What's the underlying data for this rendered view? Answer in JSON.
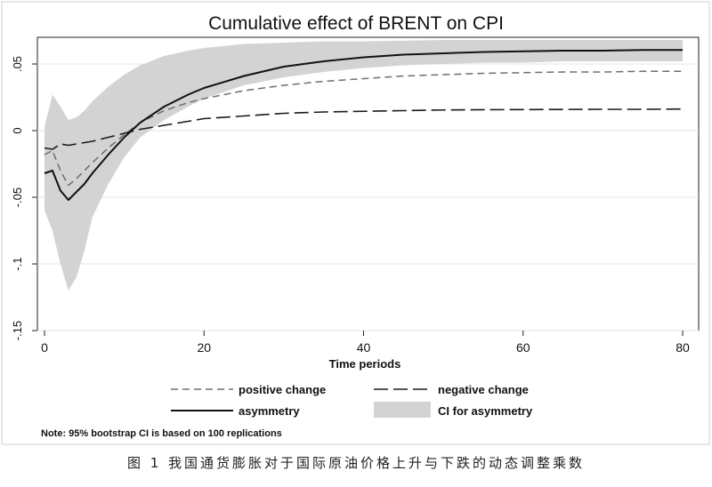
{
  "chart_data": {
    "type": "line",
    "title": "Cumulative effect of BRENT on CPI",
    "xlabel": "Time periods",
    "ylabel": "",
    "xlim": [
      0,
      80
    ],
    "ylim": [
      -0.15,
      0.07
    ],
    "x_ticks": [
      0,
      20,
      40,
      60,
      80
    ],
    "x_tick_labels": [
      "0",
      "20",
      "40",
      "60",
      "80"
    ],
    "y_ticks": [
      0.05,
      0,
      -0.05,
      -0.1,
      -0.15
    ],
    "y_tick_labels": [
      ".05",
      "0",
      "-.05",
      "-.1",
      "-.15"
    ],
    "grid": true,
    "legend_position": "bottom",
    "x": [
      0,
      1,
      2,
      3,
      4,
      5,
      6,
      8,
      10,
      12,
      15,
      18,
      20,
      25,
      30,
      35,
      40,
      45,
      50,
      55,
      60,
      65,
      70,
      75,
      80
    ],
    "series": [
      {
        "name": "positive change",
        "style": "short-dash",
        "color": "#6e6e6e",
        "values": [
          -0.018,
          -0.015,
          -0.03,
          -0.041,
          -0.036,
          -0.03,
          -0.024,
          -0.013,
          -0.003,
          0.006,
          0.015,
          0.021,
          0.024,
          0.03,
          0.034,
          0.037,
          0.039,
          0.041,
          0.042,
          0.043,
          0.0435,
          0.044,
          0.044,
          0.0445,
          0.0445
        ]
      },
      {
        "name": "negative change",
        "style": "long-dash",
        "color": "#1a1a1a",
        "values": [
          -0.013,
          -0.014,
          -0.01,
          -0.011,
          -0.01,
          -0.009,
          -0.008,
          -0.005,
          -0.002,
          0.001,
          0.004,
          0.007,
          0.009,
          0.011,
          0.013,
          0.014,
          0.0145,
          0.015,
          0.0155,
          0.0157,
          0.0158,
          0.0159,
          0.016,
          0.016,
          0.0162
        ]
      },
      {
        "name": "asymmetry",
        "style": "solid",
        "color": "#111111",
        "values": [
          -0.032,
          -0.03,
          -0.045,
          -0.052,
          -0.046,
          -0.04,
          -0.032,
          -0.018,
          -0.005,
          0.006,
          0.018,
          0.027,
          0.032,
          0.041,
          0.048,
          0.052,
          0.055,
          0.057,
          0.058,
          0.059,
          0.0595,
          0.06,
          0.06,
          0.0605,
          0.0605
        ]
      }
    ],
    "band": {
      "name": "CI for asymmetry",
      "color": "#d3d3d3",
      "upper": [
        0.003,
        0.027,
        0.018,
        0.008,
        0.01,
        0.015,
        0.022,
        0.033,
        0.042,
        0.049,
        0.056,
        0.06,
        0.062,
        0.065,
        0.066,
        0.067,
        0.067,
        0.0675,
        0.068,
        0.068,
        0.068,
        0.068,
        0.068,
        0.068,
        0.068
      ],
      "lower": [
        -0.06,
        -0.075,
        -0.1,
        -0.12,
        -0.11,
        -0.09,
        -0.065,
        -0.04,
        -0.02,
        -0.005,
        0.008,
        0.018,
        0.024,
        0.034,
        0.04,
        0.044,
        0.047,
        0.049,
        0.05,
        0.051,
        0.051,
        0.052,
        0.052,
        0.052,
        0.052
      ]
    },
    "note": "Note: 95% bootstrap CI is based on 100 replications"
  },
  "caption": "图 1   我国通货膨胀对于国际原油价格上升与下跌的动态调整乘数"
}
